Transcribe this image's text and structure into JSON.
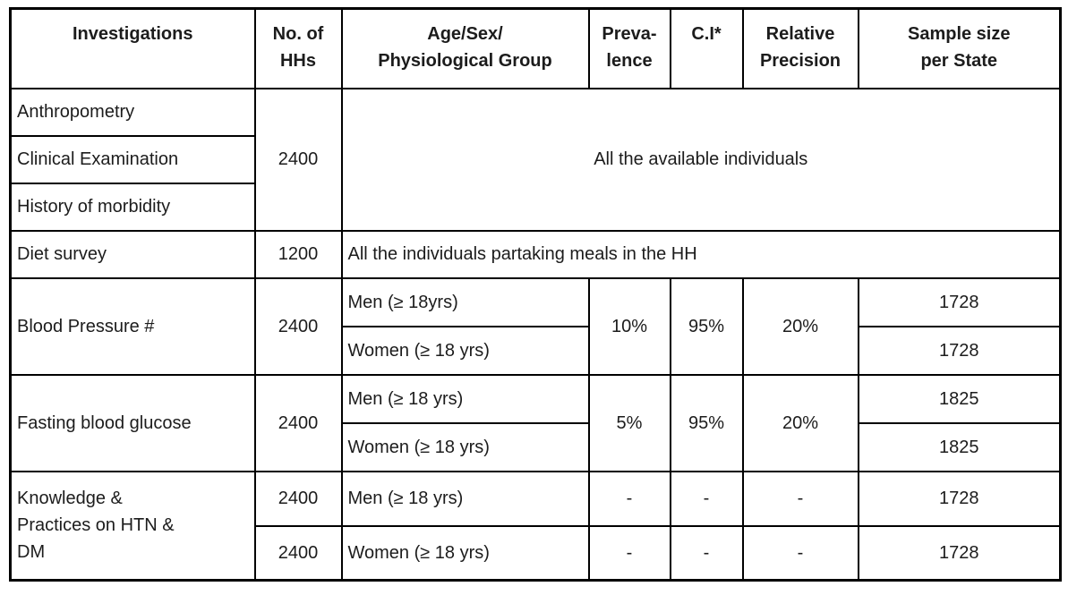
{
  "table": {
    "colors": {
      "border": "#000000",
      "text": "#1c1c1c",
      "background": "#ffffff"
    },
    "header": {
      "investigations": "Investigations",
      "no_of_hhs": "No. of\nHHs",
      "age_sex_group": "Age/Sex/\nPhysiological Group",
      "prevalence": "Preva-\nlence",
      "ci": "C.I*",
      "relative_precision": "Relative\nPrecision",
      "sample_size": "Sample size\nper State"
    },
    "rows": {
      "anthropometry": {
        "investigation": "Anthropometry"
      },
      "clinical_examination": {
        "investigation": "Clinical Examination"
      },
      "history_of_morbidity": {
        "investigation": "History of morbidity"
      },
      "anthro_group": {
        "no_of_hhs": "2400",
        "group": "All the available individuals"
      },
      "diet_survey": {
        "investigation": "Diet survey",
        "no_of_hhs": "1200",
        "group": "All the individuals partaking meals in the HH"
      },
      "blood_pressure": {
        "investigation": "Blood Pressure #",
        "no_of_hhs": "2400",
        "men_group": "Men (≥ 18yrs)",
        "women_group": "Women (≥ 18 yrs)",
        "prevalence": "10%",
        "ci": "95%",
        "relative_precision": "20%",
        "men_sample": "1728",
        "women_sample": "1728"
      },
      "fasting_blood_glucose": {
        "investigation": "Fasting blood glucose",
        "no_of_hhs": "2400",
        "men_group": "Men (≥ 18 yrs)",
        "women_group": "Women (≥ 18 yrs)",
        "prevalence": "5%",
        "ci": "95%",
        "relative_precision": "20%",
        "men_sample": "1825",
        "women_sample": "1825"
      },
      "knowledge_practices": {
        "investigation": "Knowledge &\nPractices on HTN &\nDM",
        "men_no_of_hhs": "2400",
        "men_group": "Men (≥ 18 yrs)",
        "men_prevalence": "-",
        "men_ci": "-",
        "men_relative_precision": "-",
        "men_sample": "1728",
        "women_no_of_hhs": "2400",
        "women_group": "Women (≥ 18 yrs)",
        "women_prevalence": "-",
        "women_ci": "-",
        "women_relative_precision": "-",
        "women_sample": "1728"
      }
    }
  }
}
